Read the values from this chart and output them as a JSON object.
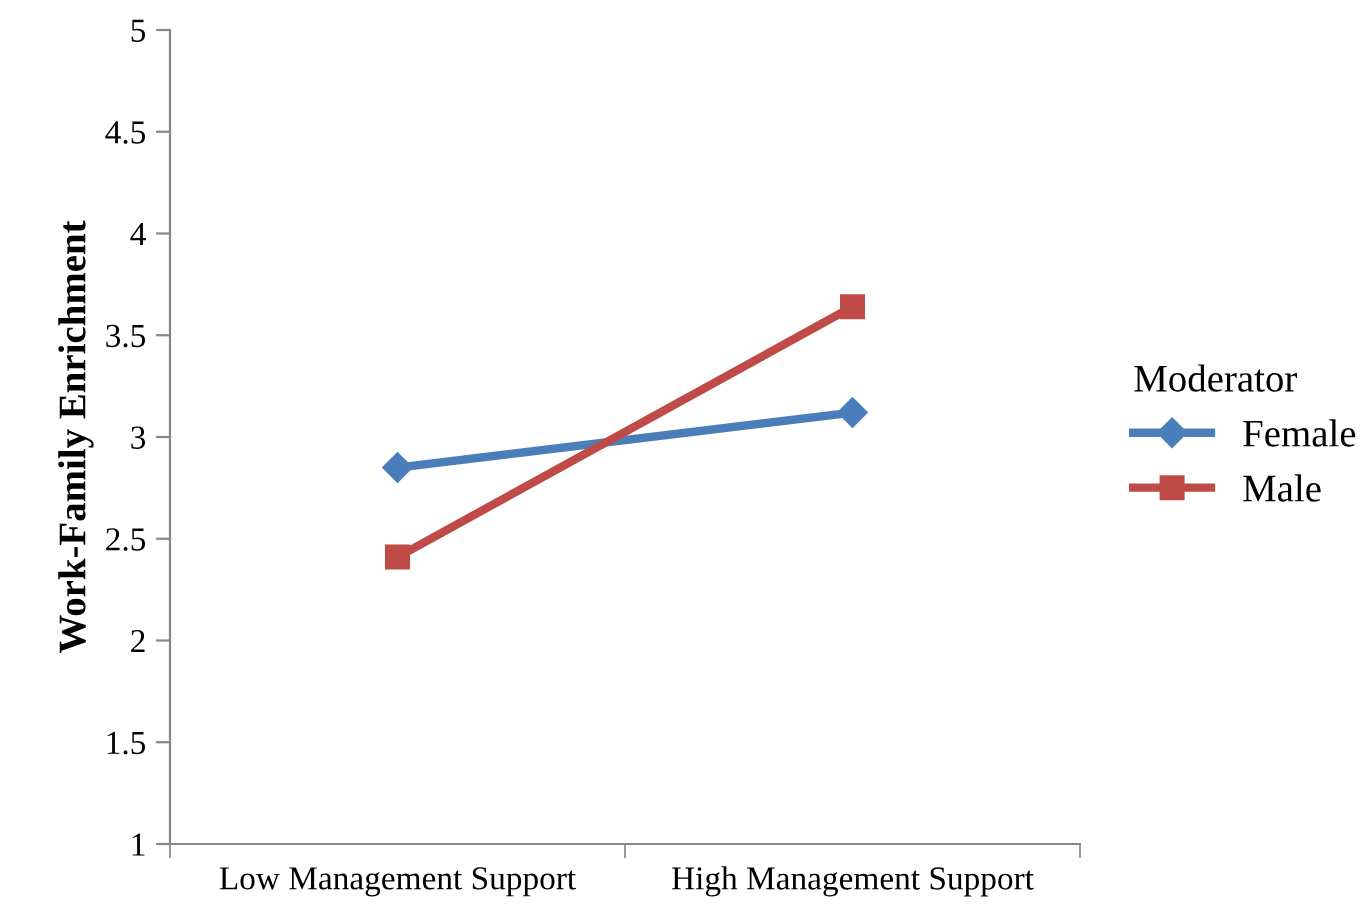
{
  "chart_data": {
    "type": "line",
    "ylabel": "Work-Family Enrichment",
    "legend_title": "Moderator",
    "categories": [
      "Low Management Support",
      "High Management Support"
    ],
    "series": [
      {
        "name": "Female",
        "color": "#4a7ebb",
        "values": [
          2.85,
          3.12
        ],
        "marker": "diamond"
      },
      {
        "name": "Male",
        "color": "#be4b48",
        "values": [
          2.41,
          3.64
        ],
        "marker": "square"
      }
    ],
    "ylim": [
      1,
      5
    ],
    "yticks": [
      1,
      1.5,
      2,
      2.5,
      3,
      3.5,
      4,
      4.5,
      5
    ],
    "grid": false,
    "legend": "right",
    "line_style": "solid"
  }
}
